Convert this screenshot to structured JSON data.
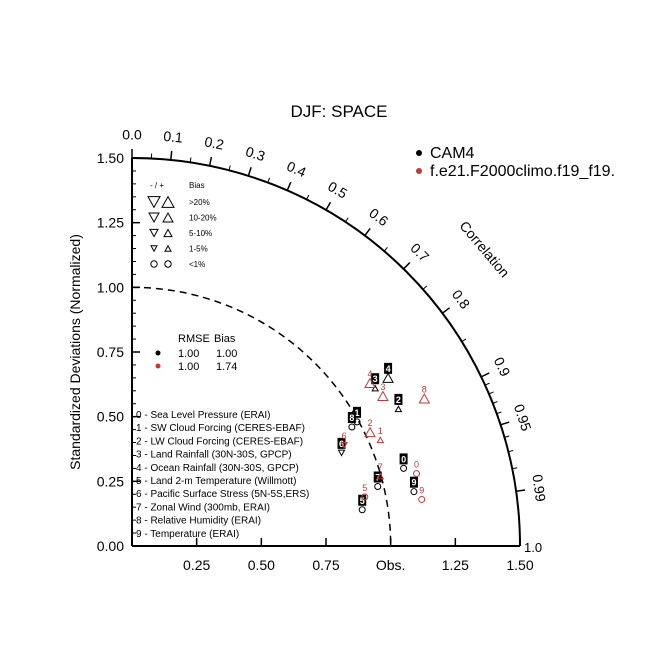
{
  "chart_data": {
    "type": "scatter",
    "title": "DJF: SPACE",
    "ylabel": "Standardized Deviations (Normalized)",
    "arc_label": "Correlation",
    "obs_label": "Obs.",
    "std_range": [
      0,
      1.5
    ],
    "std_ticks": [
      "0.00",
      "0.25",
      "0.50",
      "0.75",
      "1.00",
      "1.25",
      "1.50"
    ],
    "x_ticks": [
      "0.25",
      "0.50",
      "0.75",
      "1.25",
      "1.50"
    ],
    "x_end_label": "1.0",
    "correlation_ticks": [
      {
        "value": 0.0,
        "label": "0.0"
      },
      {
        "value": 0.1,
        "label": "0.1"
      },
      {
        "value": 0.2,
        "label": "0.2"
      },
      {
        "value": 0.3,
        "label": "0.3"
      },
      {
        "value": 0.4,
        "label": "0.4"
      },
      {
        "value": 0.5,
        "label": "0.5"
      },
      {
        "value": 0.6,
        "label": "0.6"
      },
      {
        "value": 0.7,
        "label": "0.7"
      },
      {
        "value": 0.8,
        "label": "0.8"
      },
      {
        "value": 0.9,
        "label": "0.9"
      },
      {
        "value": 0.95,
        "label": "0.95"
      },
      {
        "value": 0.99,
        "label": "0.99"
      }
    ],
    "reference_std": 1.0,
    "legend": [
      {
        "label": "CAM4",
        "color": "#000000"
      },
      {
        "label": "f.e21.F2000climo.f19_f19.",
        "color": "#c0393b"
      }
    ],
    "bias_legend": {
      "header_sign": "- / +",
      "header_bias": "Bias",
      "rows": [
        ">20%",
        "10-20%",
        "5-10%",
        "1-5%",
        "<1%"
      ]
    },
    "rmse_table": {
      "headers": [
        "RMSE",
        "Bias"
      ],
      "rows": [
        {
          "color": "#000000",
          "rmse": "1.00",
          "bias": "1.00"
        },
        {
          "color": "#c0393b",
          "rmse": "1.00",
          "bias": "1.74"
        }
      ]
    },
    "variables": [
      "0 - Sea Level Pressure (ERAI)",
      "1 - SW Cloud Forcing (CERES-EBAF)",
      "2 - LW Cloud Forcing (CERES-EBAF)",
      "3 - Land Rainfall (30N-30S, GPCP)",
      "4 - Ocean Rainfall (30N-30S, GPCP)",
      "5 - Land 2-m Temperature (Willmott)",
      "6 - Pacific Surface Stress (5N-5S,ERS)",
      "7 - Zonal Wind (300mb, ERAI)",
      "8 - Relative Humidity (ERAI)",
      "9 - Temperature (ERAI)"
    ],
    "series": [
      {
        "name": "CAM4",
        "color": "#000000",
        "points": [
          {
            "id": "0",
            "x": 1.05,
            "y": 0.3,
            "marker": "circle"
          },
          {
            "id": "1",
            "x": 0.87,
            "y": 0.48,
            "marker": "circle"
          },
          {
            "id": "2",
            "x": 1.03,
            "y": 0.53,
            "marker": "up-small"
          },
          {
            "id": "3",
            "x": 0.94,
            "y": 0.61,
            "marker": "up-small"
          },
          {
            "id": "4",
            "x": 0.99,
            "y": 0.65,
            "marker": "up-large"
          },
          {
            "id": "5",
            "x": 0.89,
            "y": 0.14,
            "marker": "circle"
          },
          {
            "id": "6",
            "x": 0.81,
            "y": 0.36,
            "marker": "down-small"
          },
          {
            "id": "7",
            "x": 0.95,
            "y": 0.23,
            "marker": "circle"
          },
          {
            "id": "8",
            "x": 0.85,
            "y": 0.46,
            "marker": "circle"
          },
          {
            "id": "9",
            "x": 1.09,
            "y": 0.21,
            "marker": "circle"
          }
        ]
      },
      {
        "name": "f.e21.F2000climo.f19_f19.",
        "color": "#c0393b",
        "points": [
          {
            "id": "0",
            "x": 1.1,
            "y": 0.28,
            "marker": "circle"
          },
          {
            "id": "1",
            "x": 0.96,
            "y": 0.41,
            "marker": "up-small"
          },
          {
            "id": "2",
            "x": 0.92,
            "y": 0.44,
            "marker": "up-large"
          },
          {
            "id": "3",
            "x": 0.97,
            "y": 0.58,
            "marker": "up-large"
          },
          {
            "id": "4",
            "x": 0.92,
            "y": 0.63,
            "marker": "up-large"
          },
          {
            "id": "5",
            "x": 0.9,
            "y": 0.19,
            "marker": "circle"
          },
          {
            "id": "6",
            "x": 0.82,
            "y": 0.39,
            "marker": "down-small"
          },
          {
            "id": "7",
            "x": 0.96,
            "y": 0.27,
            "marker": "up-small"
          },
          {
            "id": "8",
            "x": 1.13,
            "y": 0.57,
            "marker": "up-large"
          },
          {
            "id": "9",
            "x": 1.12,
            "y": 0.18,
            "marker": "circle"
          }
        ]
      }
    ]
  }
}
